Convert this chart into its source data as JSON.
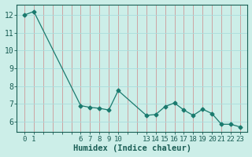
{
  "x": [
    0,
    1,
    6,
    7,
    8,
    9,
    10,
    13,
    14,
    15,
    16,
    17,
    18,
    19,
    20,
    21,
    22,
    23
  ],
  "y": [
    12.0,
    12.2,
    6.9,
    6.8,
    6.75,
    6.65,
    7.75,
    6.35,
    6.4,
    6.85,
    7.05,
    6.65,
    6.35,
    6.7,
    6.45,
    5.85,
    5.85,
    5.7
  ],
  "x_all_ticks": [
    0,
    1,
    2,
    3,
    4,
    5,
    6,
    7,
    8,
    9,
    10,
    11,
    12,
    13,
    14,
    15,
    16,
    17,
    18,
    19,
    20,
    21,
    22,
    23
  ],
  "x_tick_labels": [
    "0",
    "1",
    "",
    "",
    "",
    "",
    "6",
    "7",
    "8",
    "9",
    "10",
    "",
    "",
    "13",
    "14",
    "15",
    "16",
    "17",
    "18",
    "19",
    "20",
    "21",
    "22",
    "23"
  ],
  "y_ticks": [
    6,
    7,
    8,
    9,
    10,
    11,
    12
  ],
  "ylim": [
    5.4,
    12.6
  ],
  "xlim": [
    -0.8,
    23.8
  ],
  "xlabel": "Humidex (Indice chaleur)",
  "line_color": "#1a7a6e",
  "marker": "D",
  "marker_size": 2.5,
  "background_color": "#cceee8",
  "grid_x_color": "#cc9999",
  "grid_y_color": "#aadddd",
  "tick_color": "#1a5e55",
  "label_fontsize": 6.5,
  "xlabel_fontsize": 7.5
}
